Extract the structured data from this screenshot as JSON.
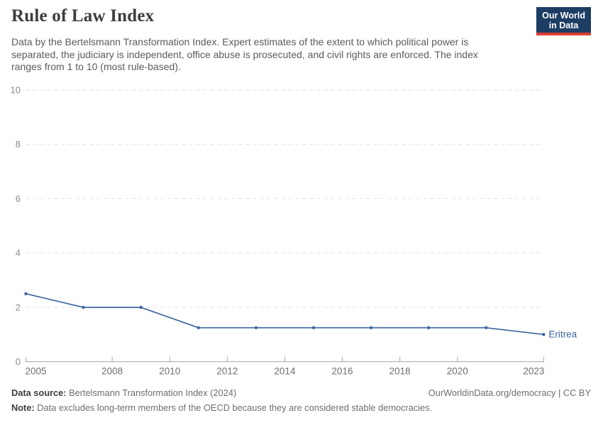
{
  "header": {
    "title": "Rule of Law Index",
    "subtitle": "Data by the Bertelsmann Transformation Index. Expert estimates of the extent to which political power is separated, the judiciary is independent, office abuse is prosecuted, and civil rights are enforced. The index ranges from 1 to 10 (most rule-based).",
    "logo_line1": "Our World",
    "logo_line2": "in Data"
  },
  "chart_data": {
    "type": "line",
    "title": "Rule of Law Index",
    "x": [
      2005,
      2007,
      2009,
      2011,
      2013,
      2015,
      2017,
      2019,
      2021,
      2023
    ],
    "series": [
      {
        "name": "Eritrea",
        "color": "#3d659f",
        "values": [
          2.5,
          2.0,
          2.0,
          1.25,
          1.25,
          1.25,
          1.25,
          1.25,
          1.25,
          1.0
        ]
      }
    ],
    "xticks": [
      2005,
      2008,
      2010,
      2012,
      2014,
      2016,
      2018,
      2020,
      2023
    ],
    "yticks": [
      0,
      2,
      4,
      6,
      8,
      10
    ],
    "xlim": [
      2005,
      2023
    ],
    "ylim": [
      0,
      10
    ],
    "grid": "horizontal-dashed",
    "legend": "end-of-line-label",
    "end_label": "Eritrea"
  },
  "footer": {
    "source_label": "Data source:",
    "source_value": "Bertelsmann Transformation Index (2024)",
    "license": "OurWorldinData.org/democracy | CC BY",
    "note_label": "Note:",
    "note_value": "Data excludes long-term members of the OECD because they are considered stable democracies."
  },
  "colors": {
    "line": "#3d659f",
    "logo_bg": "#1d3d63",
    "logo_accent": "#dc3e32",
    "gridline": "#e0e0e0",
    "axis_line": "#a8a8a8",
    "y_tick_label": "#8a8a8a",
    "x_tick_label": "#6f6f6f",
    "title": "#3d3d3d",
    "subtitle": "#5b5b5b"
  }
}
